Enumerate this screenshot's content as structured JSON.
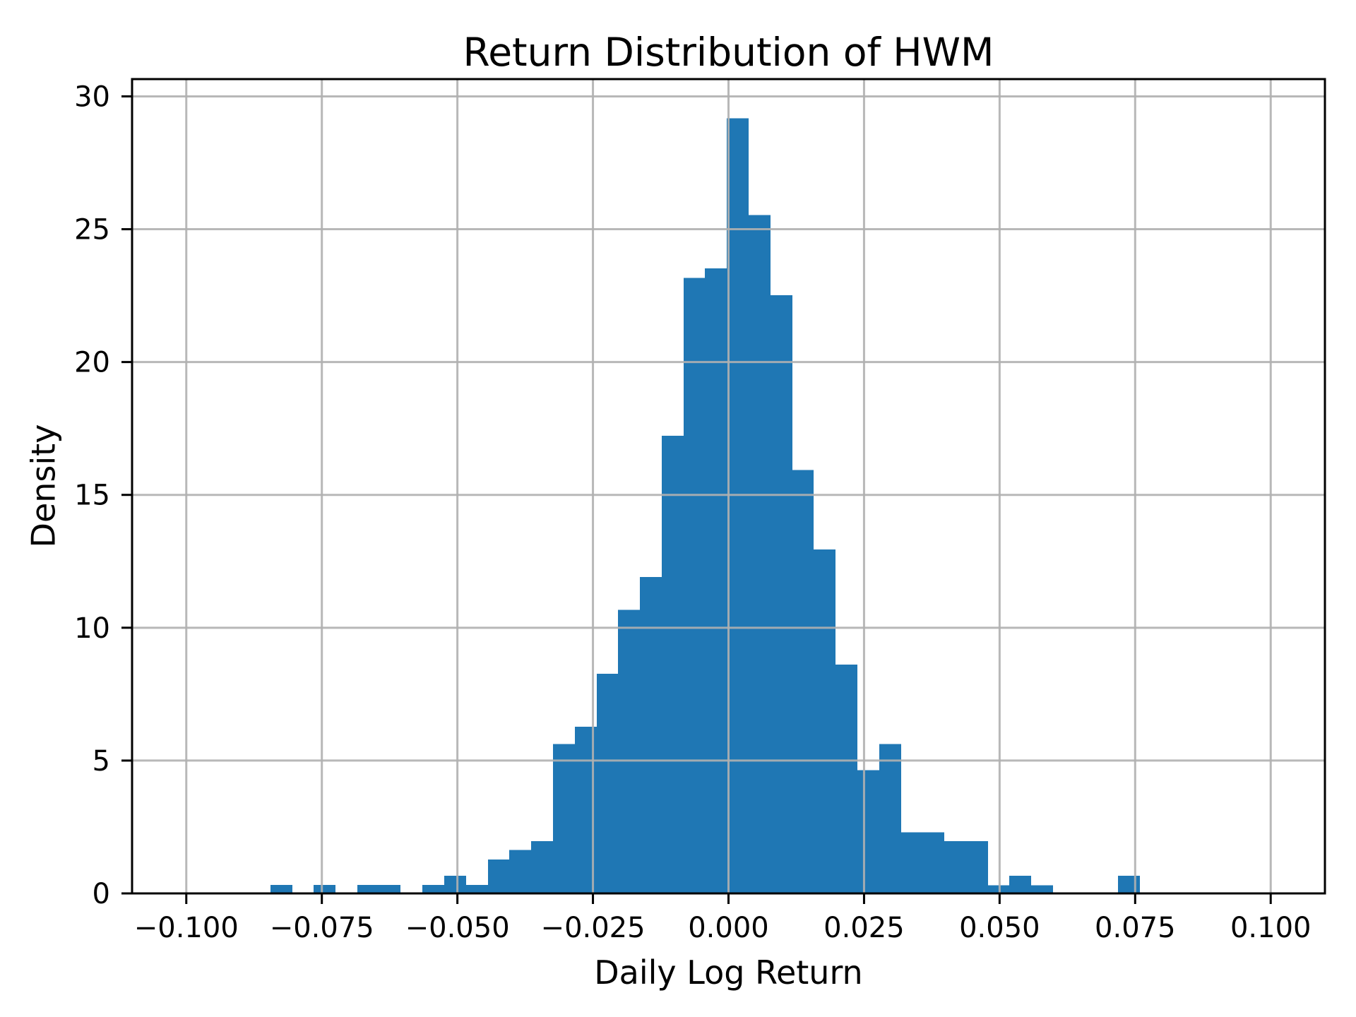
{
  "figure": {
    "kind": "matplotlib-style histogram figure",
    "background_color": "#ffffff"
  },
  "chart_data": {
    "type": "bar",
    "subtype": "histogram",
    "title": "Return Distribution of HWM",
    "xlabel": "Daily Log Return",
    "ylabel": "Density",
    "bar_color": "#1f77b4",
    "grid_color": "#b0b0b0",
    "axis_color": "#000000",
    "grid": true,
    "legend_position": "none",
    "xlim": [
      -0.11,
      0.11
    ],
    "ylim": [
      0,
      30.65
    ],
    "x_ticks": [
      -0.1,
      -0.075,
      -0.05,
      -0.025,
      0.0,
      0.025,
      0.05,
      0.075,
      0.1
    ],
    "x_tick_labels": [
      "−0.100",
      "−0.075",
      "−0.050",
      "−0.025",
      "0.000",
      "0.025",
      "0.050",
      "0.075",
      "0.100"
    ],
    "y_ticks": [
      0,
      5,
      10,
      15,
      20,
      25,
      30
    ],
    "y_tick_labels": [
      "0",
      "5",
      "10",
      "15",
      "20",
      "25",
      "30"
    ],
    "bins": {
      "start": -0.0845,
      "width": 0.00401,
      "count": 40,
      "heights": [
        0.32,
        0,
        0.32,
        0,
        0.32,
        0.32,
        0,
        0.32,
        0.66,
        0.32,
        1.28,
        1.63,
        1.97,
        5.62,
        6.28,
        8.27,
        10.67,
        11.91,
        17.22,
        23.17,
        23.53,
        29.18,
        25.53,
        22.52,
        15.93,
        12.95,
        8.61,
        4.64,
        5.62,
        2.3,
        2.3,
        1.97,
        1.97,
        0.3,
        0.66,
        0.3,
        0,
        0,
        0,
        0.66
      ]
    }
  }
}
